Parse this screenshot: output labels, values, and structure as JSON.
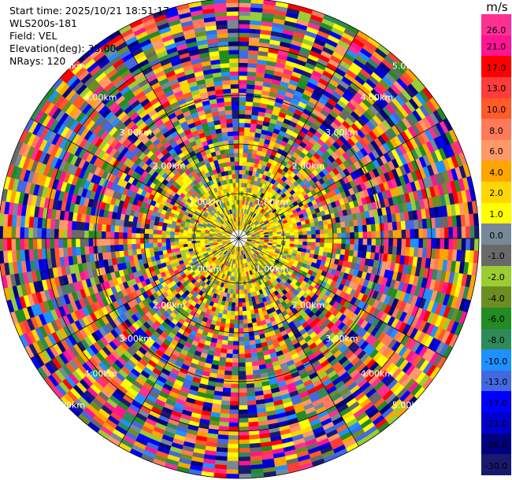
{
  "header": {
    "start_time": "Start time: 2025/10/21 18:51:17",
    "instrument": "WLS200s-181",
    "field": "Field: VEL",
    "elevation": "Elevation(deg): 35.00",
    "nrays": "NRays: 120"
  },
  "range_ring_labels": [
    "1.00km",
    "2.00km",
    "3.00km",
    "4.00km",
    "5.00km"
  ],
  "colorbar": {
    "unit": "m/s",
    "ticks": [
      "26.0",
      "21.0",
      "17.0",
      "13.0",
      "10.0",
      "8.0",
      "6.0",
      "4.0",
      "2.0",
      "1.0",
      "0.0",
      "-1.0",
      "-2.0",
      "-4.0",
      "-6.0",
      "-8.0",
      "-10.0",
      "-13.0",
      "-17.0",
      "-21.0",
      "-26.0",
      "-30.0"
    ],
    "colors": [
      "#ff2f92",
      "#ff1493",
      "#ff0000",
      "#ff3b3b",
      "#ff5a28",
      "#ff7a5a",
      "#ff9968",
      "#ffa500",
      "#ffd700",
      "#ffff00",
      "#778899",
      "#696969",
      "#9acd32",
      "#6b8e23",
      "#228b22",
      "#2e8b57",
      "#1e90ff",
      "#4169e1",
      "#0000ff",
      "#0000cd",
      "#000080",
      "#191970"
    ]
  }
}
